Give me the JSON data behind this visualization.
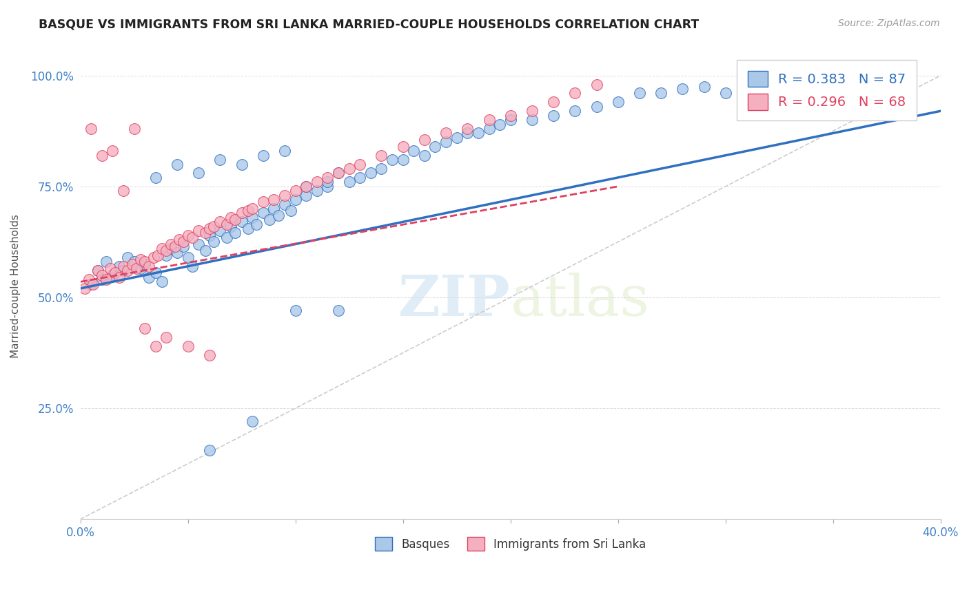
{
  "title": "BASQUE VS IMMIGRANTS FROM SRI LANKA MARRIED-COUPLE HOUSEHOLDS CORRELATION CHART",
  "source": "Source: ZipAtlas.com",
  "ylabel": "Married-couple Households",
  "yticks": [
    "25.0%",
    "50.0%",
    "75.0%",
    "100.0%"
  ],
  "ytick_vals": [
    0.25,
    0.5,
    0.75,
    1.0
  ],
  "xmin": 0.0,
  "xmax": 0.4,
  "ymin": 0.0,
  "ymax": 1.05,
  "blue_R": 0.383,
  "blue_N": 87,
  "pink_R": 0.296,
  "pink_N": 68,
  "blue_color": "#aac8e8",
  "pink_color": "#f5b0c0",
  "blue_line_color": "#3070c0",
  "pink_line_color": "#e04060",
  "legend_label_blue": "Basques",
  "legend_label_pink": "Immigrants from Sri Lanka",
  "watermark_zip": "ZIP",
  "watermark_atlas": "atlas",
  "blue_scatter_x": [
    0.005,
    0.008,
    0.01,
    0.012,
    0.015,
    0.018,
    0.02,
    0.022,
    0.025,
    0.028,
    0.03,
    0.032,
    0.035,
    0.038,
    0.04,
    0.042,
    0.045,
    0.048,
    0.05,
    0.052,
    0.055,
    0.058,
    0.06,
    0.062,
    0.065,
    0.068,
    0.07,
    0.072,
    0.075,
    0.078,
    0.08,
    0.082,
    0.085,
    0.088,
    0.09,
    0.092,
    0.095,
    0.098,
    0.1,
    0.105,
    0.11,
    0.115,
    0.12,
    0.125,
    0.13,
    0.135,
    0.14,
    0.145,
    0.15,
    0.155,
    0.16,
    0.165,
    0.17,
    0.175,
    0.18,
    0.185,
    0.19,
    0.195,
    0.2,
    0.21,
    0.22,
    0.23,
    0.24,
    0.25,
    0.26,
    0.27,
    0.28,
    0.29,
    0.3,
    0.31,
    0.32,
    0.33,
    0.34,
    0.35,
    0.06,
    0.08,
    0.1,
    0.12,
    0.035,
    0.045,
    0.055,
    0.065,
    0.075,
    0.085,
    0.095,
    0.105,
    0.115
  ],
  "blue_scatter_y": [
    0.53,
    0.56,
    0.54,
    0.58,
    0.55,
    0.57,
    0.56,
    0.59,
    0.58,
    0.565,
    0.575,
    0.545,
    0.555,
    0.535,
    0.595,
    0.61,
    0.6,
    0.615,
    0.59,
    0.57,
    0.62,
    0.605,
    0.64,
    0.625,
    0.65,
    0.635,
    0.66,
    0.645,
    0.67,
    0.655,
    0.68,
    0.665,
    0.69,
    0.675,
    0.7,
    0.685,
    0.71,
    0.695,
    0.72,
    0.73,
    0.74,
    0.75,
    0.78,
    0.76,
    0.77,
    0.78,
    0.79,
    0.81,
    0.81,
    0.83,
    0.82,
    0.84,
    0.85,
    0.86,
    0.87,
    0.87,
    0.88,
    0.89,
    0.9,
    0.9,
    0.91,
    0.92,
    0.93,
    0.94,
    0.96,
    0.96,
    0.97,
    0.975,
    0.96,
    0.98,
    0.985,
    0.99,
    0.995,
    1.0,
    0.155,
    0.22,
    0.47,
    0.47,
    0.77,
    0.8,
    0.78,
    0.81,
    0.8,
    0.82,
    0.83,
    0.75,
    0.76
  ],
  "pink_scatter_x": [
    0.002,
    0.004,
    0.006,
    0.008,
    0.01,
    0.012,
    0.014,
    0.016,
    0.018,
    0.02,
    0.022,
    0.024,
    0.026,
    0.028,
    0.03,
    0.032,
    0.034,
    0.036,
    0.038,
    0.04,
    0.042,
    0.044,
    0.046,
    0.048,
    0.05,
    0.052,
    0.055,
    0.058,
    0.06,
    0.062,
    0.065,
    0.068,
    0.07,
    0.072,
    0.075,
    0.078,
    0.08,
    0.085,
    0.09,
    0.095,
    0.1,
    0.105,
    0.11,
    0.115,
    0.12,
    0.125,
    0.13,
    0.14,
    0.15,
    0.16,
    0.17,
    0.18,
    0.19,
    0.2,
    0.21,
    0.22,
    0.23,
    0.24,
    0.01,
    0.02,
    0.03,
    0.04,
    0.05,
    0.06,
    0.005,
    0.015,
    0.025,
    0.035
  ],
  "pink_scatter_y": [
    0.52,
    0.54,
    0.53,
    0.56,
    0.55,
    0.54,
    0.565,
    0.555,
    0.545,
    0.57,
    0.56,
    0.575,
    0.565,
    0.585,
    0.58,
    0.57,
    0.59,
    0.595,
    0.61,
    0.605,
    0.62,
    0.615,
    0.63,
    0.625,
    0.64,
    0.635,
    0.65,
    0.645,
    0.655,
    0.66,
    0.67,
    0.665,
    0.68,
    0.675,
    0.69,
    0.695,
    0.7,
    0.715,
    0.72,
    0.73,
    0.74,
    0.75,
    0.76,
    0.77,
    0.78,
    0.79,
    0.8,
    0.82,
    0.84,
    0.855,
    0.87,
    0.88,
    0.9,
    0.91,
    0.92,
    0.94,
    0.96,
    0.98,
    0.82,
    0.74,
    0.43,
    0.41,
    0.39,
    0.37,
    0.88,
    0.83,
    0.88,
    0.39
  ]
}
